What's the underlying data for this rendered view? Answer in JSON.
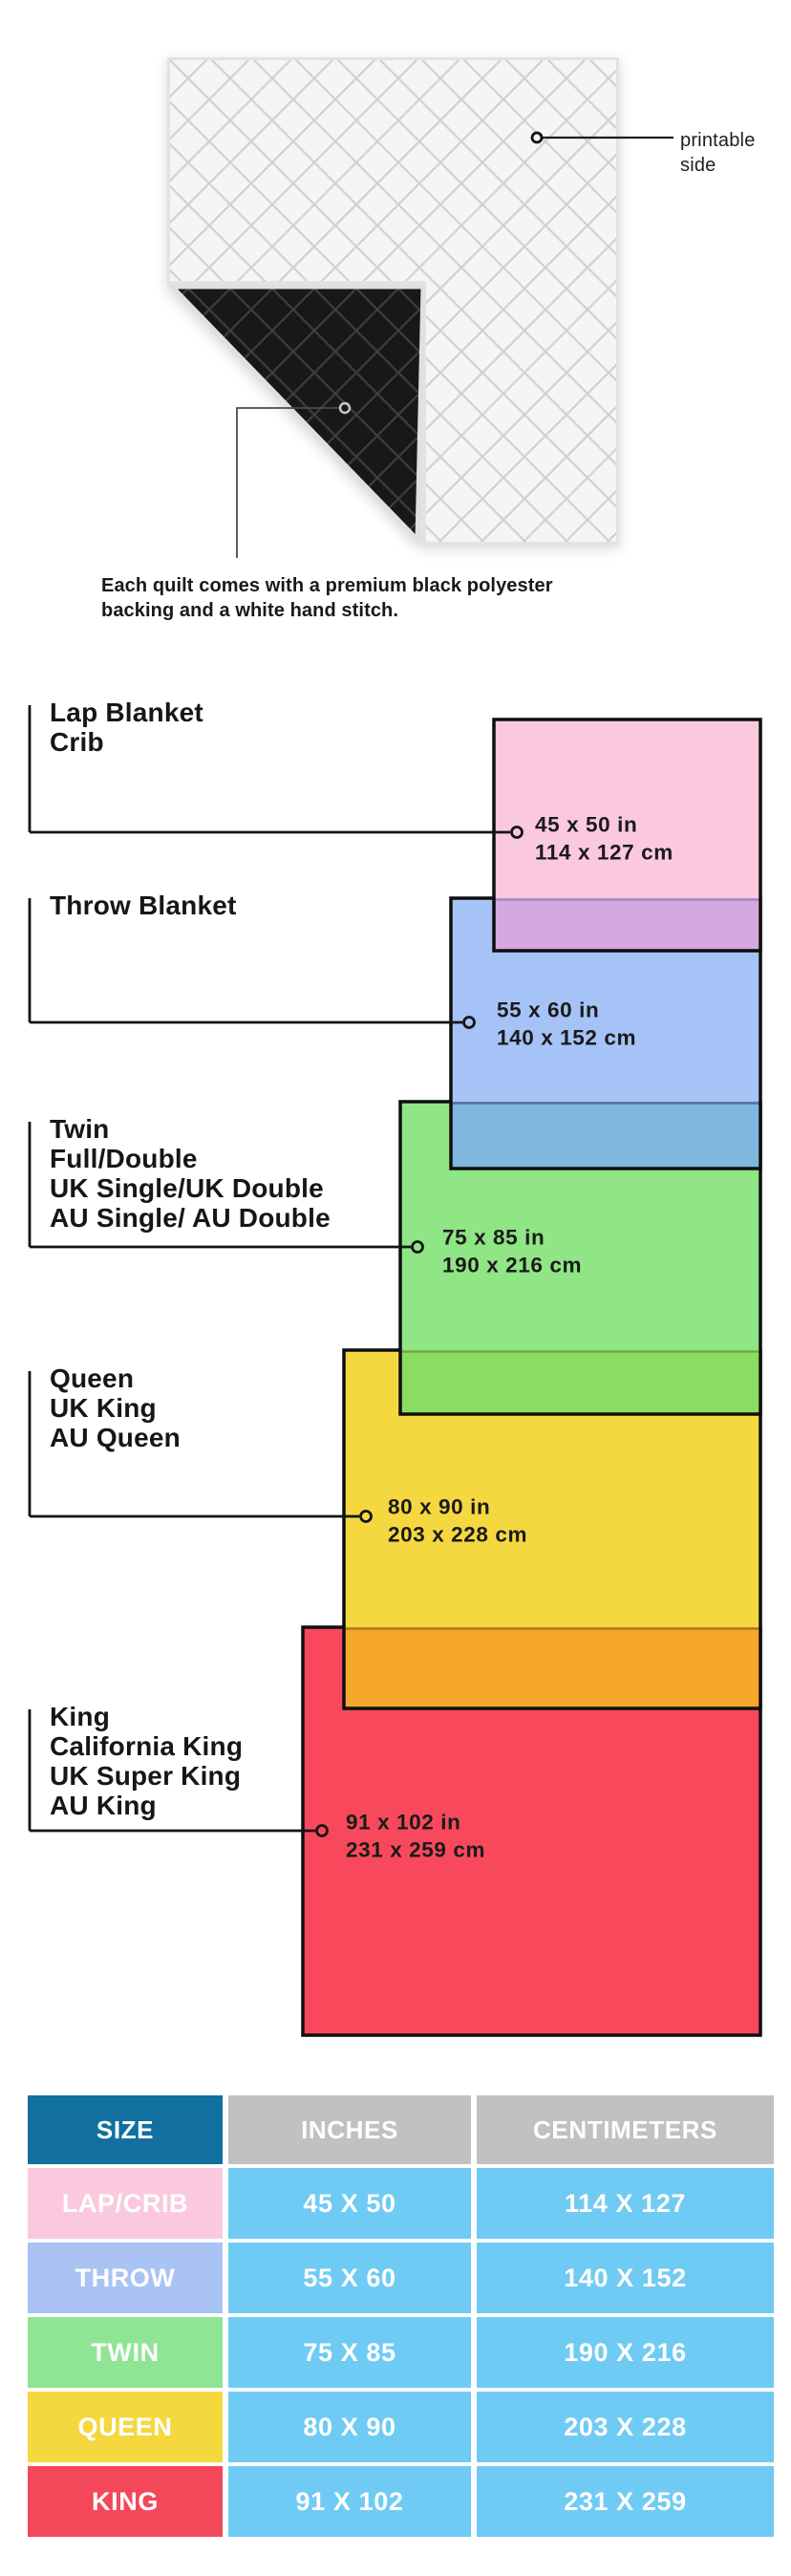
{
  "hero": {
    "printable_label_lines": [
      "printable",
      "side"
    ],
    "caption_lines": [
      "Each quilt comes with a premium black polyester",
      "backing and a white hand stitch."
    ],
    "quilt_front_color": "#f5f5f5",
    "quilt_back_color": "#181818"
  },
  "diagram": {
    "line_color": "#141414",
    "border_color": "#0e0e0e",
    "sizes": [
      {
        "id": "lap-crib",
        "label_lines": [
          "Lap Blanket",
          "Crib"
        ],
        "inches": "45 x 50 in",
        "centimeters": "114 x 127 cm",
        "fill": "#FBC9DF"
      },
      {
        "id": "throw",
        "label_lines": [
          "Throw Blanket"
        ],
        "inches": "55 x 60 in",
        "centimeters": "140 x 152 cm",
        "fill": "#A6C3F7"
      },
      {
        "id": "twin",
        "label_lines": [
          "Twin",
          "Full/Double",
          "UK Single/UK Double",
          "AU Single/ AU Double"
        ],
        "inches": "75 x 85 in",
        "centimeters": "190 x 216 cm",
        "fill": "#90E585"
      },
      {
        "id": "queen",
        "label_lines": [
          "Queen",
          "UK King",
          "AU Queen"
        ],
        "inches": "80 x 90 in",
        "centimeters": "203 x 228 cm",
        "fill": "#F5D740"
      },
      {
        "id": "king",
        "label_lines": [
          "King",
          "California King",
          "UK Super King",
          "AU King"
        ],
        "inches": "91 x 102 in",
        "centimeters": "231 x 259 cm",
        "fill": "#F8495C"
      }
    ],
    "overlaps": [
      {
        "fill": "#D5A8DF",
        "line": "#9F8CC0"
      },
      {
        "fill": "#7FB7DF",
        "line": "#4D7396"
      },
      {
        "fill": "#8BDC63",
        "line": "#6FAE3E"
      },
      {
        "fill": "#F4A72A",
        "line": "#B27D15"
      }
    ]
  },
  "table": {
    "headers": [
      "SIZE",
      "INCHES",
      "CENTIMETERS"
    ],
    "header_size_bg": "#1170A0",
    "header_metric_bg": "#C2C1C1",
    "cell_bg": "#6FCBF3",
    "rows": [
      {
        "label": "LAP/CRIB",
        "label_bg": "#FAC9DE",
        "inches": "45 X 50",
        "centimeters": "114 X 127"
      },
      {
        "label": "THROW",
        "label_bg": "#A9C3F5",
        "inches": "55 X 60",
        "centimeters": "140 X 152"
      },
      {
        "label": "TWIN",
        "label_bg": "#8FE594",
        "inches": "75 X 85",
        "centimeters": "190 X 216"
      },
      {
        "label": "QUEEN",
        "label_bg": "#F5D73E",
        "inches": "80 X 90",
        "centimeters": "203 X 228"
      },
      {
        "label": "KING",
        "label_bg": "#F3485A",
        "inches": "91 X 102",
        "centimeters": "231 X 259"
      }
    ]
  }
}
